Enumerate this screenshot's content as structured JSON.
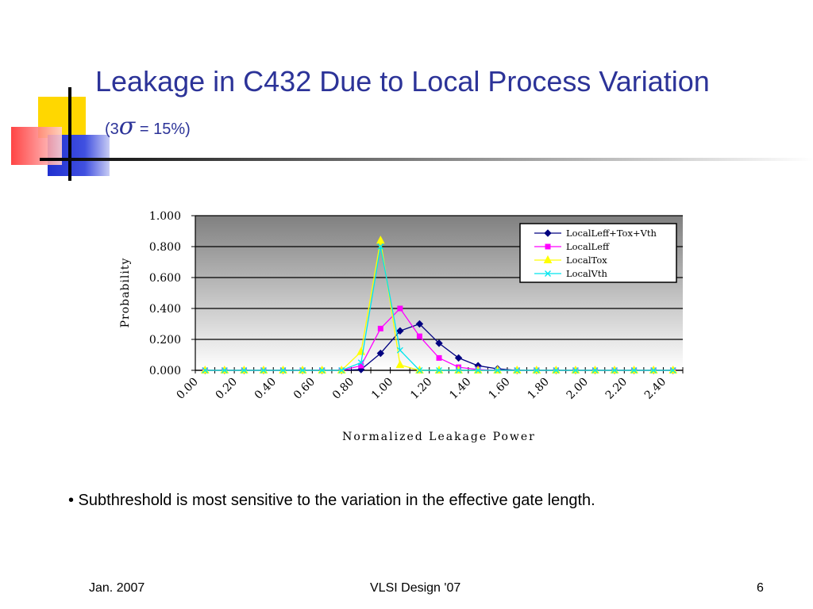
{
  "slide": {
    "title": "Leakage in C432 Due to Local Process Variation",
    "subtitle_prefix": "(3",
    "subtitle_sigma": "σ",
    "subtitle_suffix": " = 15%)",
    "bullet": "• Subthreshold is most sensitive to the variation in the effective gate length.",
    "footer_left": "Jan. 2007",
    "footer_center": "VLSI Design '07",
    "footer_right": "6"
  },
  "colors": {
    "title": "#2c3398",
    "deco_yellow": "#ffd700",
    "deco_blue": "#2233cc",
    "deco_red": "#ff4d4d",
    "plot_top": "#808080",
    "plot_bottom": "#ffffff"
  },
  "chart_data": {
    "type": "line",
    "title": "",
    "xlabel": "Normalized Leakage Power",
    "ylabel": "Probability",
    "ylim": [
      0,
      1
    ],
    "yticks": [
      "1.000",
      "0.800",
      "0.600",
      "0.400",
      "0.200",
      "0.000"
    ],
    "xticks": [
      "0.00",
      "0.20",
      "0.40",
      "0.60",
      "0.80",
      "1.00",
      "1.20",
      "1.40",
      "1.60",
      "1.80",
      "2.00",
      "2.20",
      "2.40"
    ],
    "grid": "horizontal",
    "legend_position": "top-right",
    "x": [
      0.05,
      0.15,
      0.25,
      0.35,
      0.45,
      0.55,
      0.65,
      0.75,
      0.85,
      0.95,
      1.05,
      1.15,
      1.25,
      1.35,
      1.45,
      1.55,
      1.65,
      1.75,
      1.85,
      1.95,
      2.05,
      2.15,
      2.25,
      2.35,
      2.45
    ],
    "series": [
      {
        "name": "LocalLeff+Tox+Vth",
        "color": "#000080",
        "marker": "diamond",
        "values": [
          0,
          0,
          0,
          0,
          0,
          0,
          0,
          0,
          0.005,
          0.11,
          0.255,
          0.3,
          0.175,
          0.08,
          0.03,
          0.01,
          0,
          0,
          0,
          0,
          0,
          0,
          0,
          0,
          0
        ]
      },
      {
        "name": "LocalLeff",
        "color": "#ff00ff",
        "marker": "square",
        "values": [
          0,
          0,
          0,
          0,
          0,
          0,
          0,
          0,
          0.03,
          0.27,
          0.4,
          0.22,
          0.08,
          0.02,
          0.005,
          0,
          0,
          0,
          0,
          0,
          0,
          0,
          0,
          0,
          0
        ]
      },
      {
        "name": "LocalTox",
        "color": "#ffff00",
        "marker": "triangle",
        "values": [
          0,
          0,
          0,
          0,
          0,
          0,
          0,
          0,
          0.12,
          0.84,
          0.035,
          0,
          0,
          0,
          0,
          0,
          0,
          0,
          0,
          0,
          0,
          0,
          0,
          0,
          0
        ]
      },
      {
        "name": "LocalVth",
        "color": "#00e5ee",
        "marker": "x",
        "values": [
          0,
          0,
          0,
          0,
          0,
          0,
          0,
          0,
          0.05,
          0.8,
          0.13,
          0,
          0,
          0,
          0,
          0,
          0,
          0,
          0,
          0,
          0,
          0,
          0,
          0,
          0
        ]
      }
    ]
  }
}
